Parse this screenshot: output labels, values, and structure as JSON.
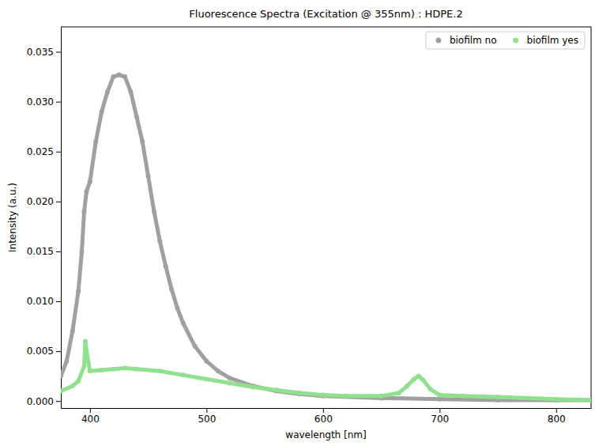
{
  "chart_data": {
    "type": "scatter",
    "title": "Fluorescence Spectra (Excitation @ 355nm) : HDPE.2",
    "x_label": "wavelength [nm]",
    "y_label": "Intensity (a.u.)",
    "xlim": [
      375,
      830
    ],
    "xticks": [
      400,
      500,
      600,
      700,
      800
    ],
    "ylim": [
      -0.0007,
      0.0375
    ],
    "yticks": [
      {
        "value": 0,
        "label": "0.000"
      },
      0.005,
      {
        "value": 0.01,
        "label": "0.010"
      },
      0.015,
      {
        "value": 0.02,
        "label": "0.020"
      },
      0.025,
      {
        "value": 0.03,
        "label": "0.030"
      },
      0.035
    ],
    "grid": false,
    "legend": "upper right",
    "marker": "circle",
    "series": [
      {
        "name": "biofilm no",
        "color": "#a0a0a0",
        "x": [
          375,
          380,
          385,
          390,
          393,
          395,
          397,
          400,
          405,
          410,
          415,
          420,
          425,
          430,
          435,
          440,
          445,
          450,
          455,
          460,
          465,
          470,
          475,
          480,
          490,
          500,
          510,
          520,
          540,
          560,
          580,
          600,
          650,
          700,
          750,
          800,
          830
        ],
        "values": [
          0.0025,
          0.004,
          0.007,
          0.011,
          0.015,
          0.019,
          0.021,
          0.022,
          0.026,
          0.029,
          0.031,
          0.0325,
          0.0327,
          0.0325,
          0.031,
          0.0285,
          0.026,
          0.0225,
          0.019,
          0.016,
          0.0135,
          0.0112,
          0.0093,
          0.0078,
          0.0055,
          0.004,
          0.003,
          0.0023,
          0.0015,
          0.001,
          0.0007,
          0.0005,
          0.0003,
          0.0002,
          0.0001,
          0.0001,
          0.0001
        ]
      },
      {
        "name": "biofilm yes",
        "color": "#90e090",
        "x": [
          375,
          385,
          390,
          395,
          396,
          397,
          400,
          410,
          420,
          430,
          440,
          460,
          480,
          500,
          520,
          540,
          560,
          580,
          600,
          620,
          650,
          665,
          672,
          678,
          682,
          686,
          692,
          700,
          720,
          750,
          800,
          830
        ],
        "values": [
          0.001,
          0.0015,
          0.002,
          0.0035,
          0.006,
          0.005,
          0.003,
          0.0031,
          0.0032,
          0.0033,
          0.0032,
          0.003,
          0.0026,
          0.0022,
          0.0018,
          0.0014,
          0.0011,
          0.0008,
          0.0006,
          0.0005,
          0.0005,
          0.0008,
          0.0015,
          0.0022,
          0.0025,
          0.0021,
          0.0012,
          0.0006,
          0.0005,
          0.0004,
          0.0002,
          0.0001
        ]
      }
    ]
  }
}
